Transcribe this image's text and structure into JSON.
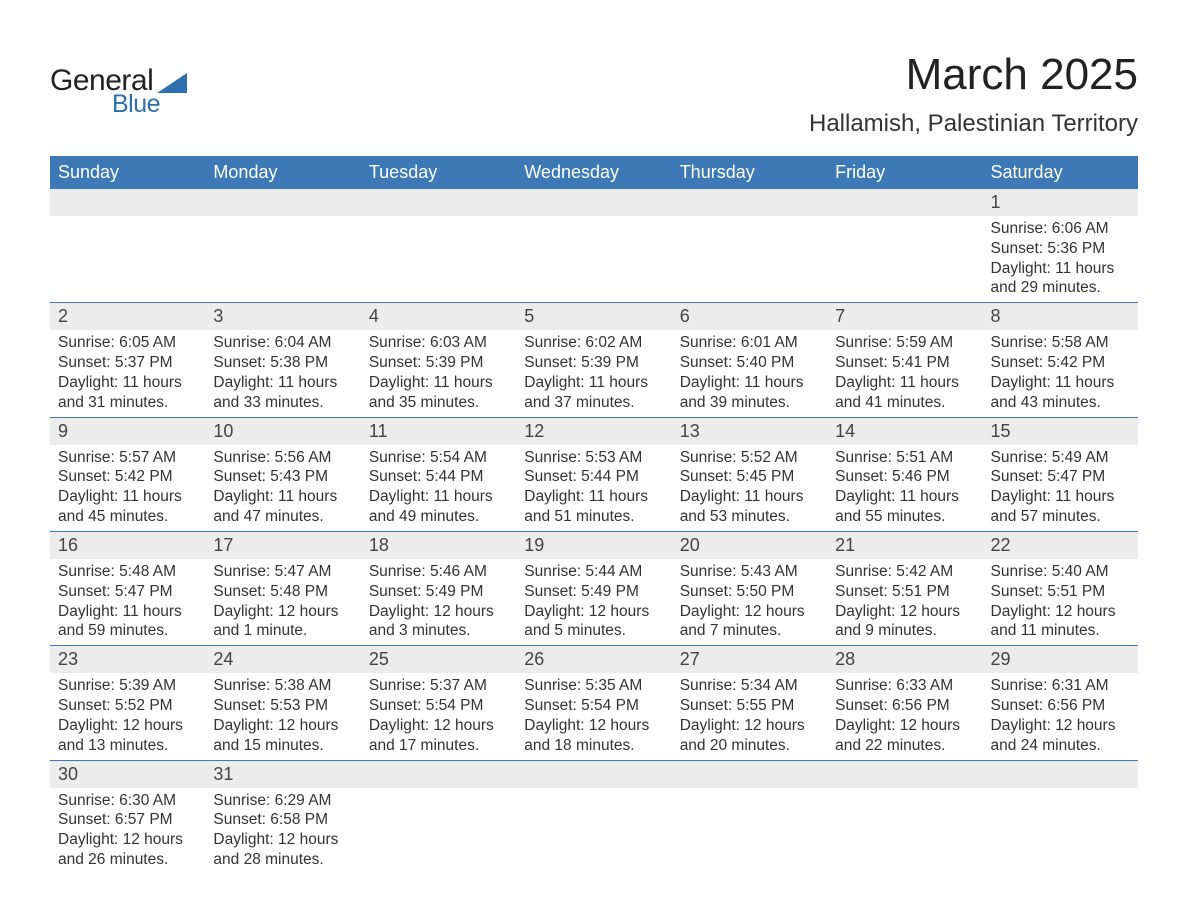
{
  "brand": {
    "line1": "General",
    "line2": "Blue",
    "accent": "#2e6fb0"
  },
  "title": "March 2025",
  "location": "Hallamish, Palestinian Territory",
  "header_bg": "#3d79b6",
  "stripe_bg": "#ececec",
  "columns": [
    "Sunday",
    "Monday",
    "Tuesday",
    "Wednesday",
    "Thursday",
    "Friday",
    "Saturday"
  ],
  "weeks": [
    [
      null,
      null,
      null,
      null,
      null,
      null,
      {
        "n": "1",
        "sr": "6:06 AM",
        "ss": "5:36 PM",
        "dh": "11",
        "dm": "29"
      }
    ],
    [
      {
        "n": "2",
        "sr": "6:05 AM",
        "ss": "5:37 PM",
        "dh": "11",
        "dm": "31"
      },
      {
        "n": "3",
        "sr": "6:04 AM",
        "ss": "5:38 PM",
        "dh": "11",
        "dm": "33"
      },
      {
        "n": "4",
        "sr": "6:03 AM",
        "ss": "5:39 PM",
        "dh": "11",
        "dm": "35"
      },
      {
        "n": "5",
        "sr": "6:02 AM",
        "ss": "5:39 PM",
        "dh": "11",
        "dm": "37"
      },
      {
        "n": "6",
        "sr": "6:01 AM",
        "ss": "5:40 PM",
        "dh": "11",
        "dm": "39"
      },
      {
        "n": "7",
        "sr": "5:59 AM",
        "ss": "5:41 PM",
        "dh": "11",
        "dm": "41"
      },
      {
        "n": "8",
        "sr": "5:58 AM",
        "ss": "5:42 PM",
        "dh": "11",
        "dm": "43"
      }
    ],
    [
      {
        "n": "9",
        "sr": "5:57 AM",
        "ss": "5:42 PM",
        "dh": "11",
        "dm": "45"
      },
      {
        "n": "10",
        "sr": "5:56 AM",
        "ss": "5:43 PM",
        "dh": "11",
        "dm": "47"
      },
      {
        "n": "11",
        "sr": "5:54 AM",
        "ss": "5:44 PM",
        "dh": "11",
        "dm": "49"
      },
      {
        "n": "12",
        "sr": "5:53 AM",
        "ss": "5:44 PM",
        "dh": "11",
        "dm": "51"
      },
      {
        "n": "13",
        "sr": "5:52 AM",
        "ss": "5:45 PM",
        "dh": "11",
        "dm": "53"
      },
      {
        "n": "14",
        "sr": "5:51 AM",
        "ss": "5:46 PM",
        "dh": "11",
        "dm": "55"
      },
      {
        "n": "15",
        "sr": "5:49 AM",
        "ss": "5:47 PM",
        "dh": "11",
        "dm": "57"
      }
    ],
    [
      {
        "n": "16",
        "sr": "5:48 AM",
        "ss": "5:47 PM",
        "dh": "11",
        "dm": "59"
      },
      {
        "n": "17",
        "sr": "5:47 AM",
        "ss": "5:48 PM",
        "dh": "12",
        "dm": "1"
      },
      {
        "n": "18",
        "sr": "5:46 AM",
        "ss": "5:49 PM",
        "dh": "12",
        "dm": "3"
      },
      {
        "n": "19",
        "sr": "5:44 AM",
        "ss": "5:49 PM",
        "dh": "12",
        "dm": "5"
      },
      {
        "n": "20",
        "sr": "5:43 AM",
        "ss": "5:50 PM",
        "dh": "12",
        "dm": "7"
      },
      {
        "n": "21",
        "sr": "5:42 AM",
        "ss": "5:51 PM",
        "dh": "12",
        "dm": "9"
      },
      {
        "n": "22",
        "sr": "5:40 AM",
        "ss": "5:51 PM",
        "dh": "12",
        "dm": "11"
      }
    ],
    [
      {
        "n": "23",
        "sr": "5:39 AM",
        "ss": "5:52 PM",
        "dh": "12",
        "dm": "13"
      },
      {
        "n": "24",
        "sr": "5:38 AM",
        "ss": "5:53 PM",
        "dh": "12",
        "dm": "15"
      },
      {
        "n": "25",
        "sr": "5:37 AM",
        "ss": "5:54 PM",
        "dh": "12",
        "dm": "17"
      },
      {
        "n": "26",
        "sr": "5:35 AM",
        "ss": "5:54 PM",
        "dh": "12",
        "dm": "18"
      },
      {
        "n": "27",
        "sr": "5:34 AM",
        "ss": "5:55 PM",
        "dh": "12",
        "dm": "20"
      },
      {
        "n": "28",
        "sr": "6:33 AM",
        "ss": "6:56 PM",
        "dh": "12",
        "dm": "22"
      },
      {
        "n": "29",
        "sr": "6:31 AM",
        "ss": "6:56 PM",
        "dh": "12",
        "dm": "24"
      }
    ],
    [
      {
        "n": "30",
        "sr": "6:30 AM",
        "ss": "6:57 PM",
        "dh": "12",
        "dm": "26"
      },
      {
        "n": "31",
        "sr": "6:29 AM",
        "ss": "6:58 PM",
        "dh": "12",
        "dm": "28"
      },
      null,
      null,
      null,
      null,
      null
    ]
  ],
  "labels": {
    "sunrise": "Sunrise:",
    "sunset": "Sunset:",
    "daylight": "Daylight:",
    "hours": "hours",
    "and": "and",
    "minutes_suffix_plural": "minutes.",
    "minutes_suffix_singular": "minute."
  }
}
